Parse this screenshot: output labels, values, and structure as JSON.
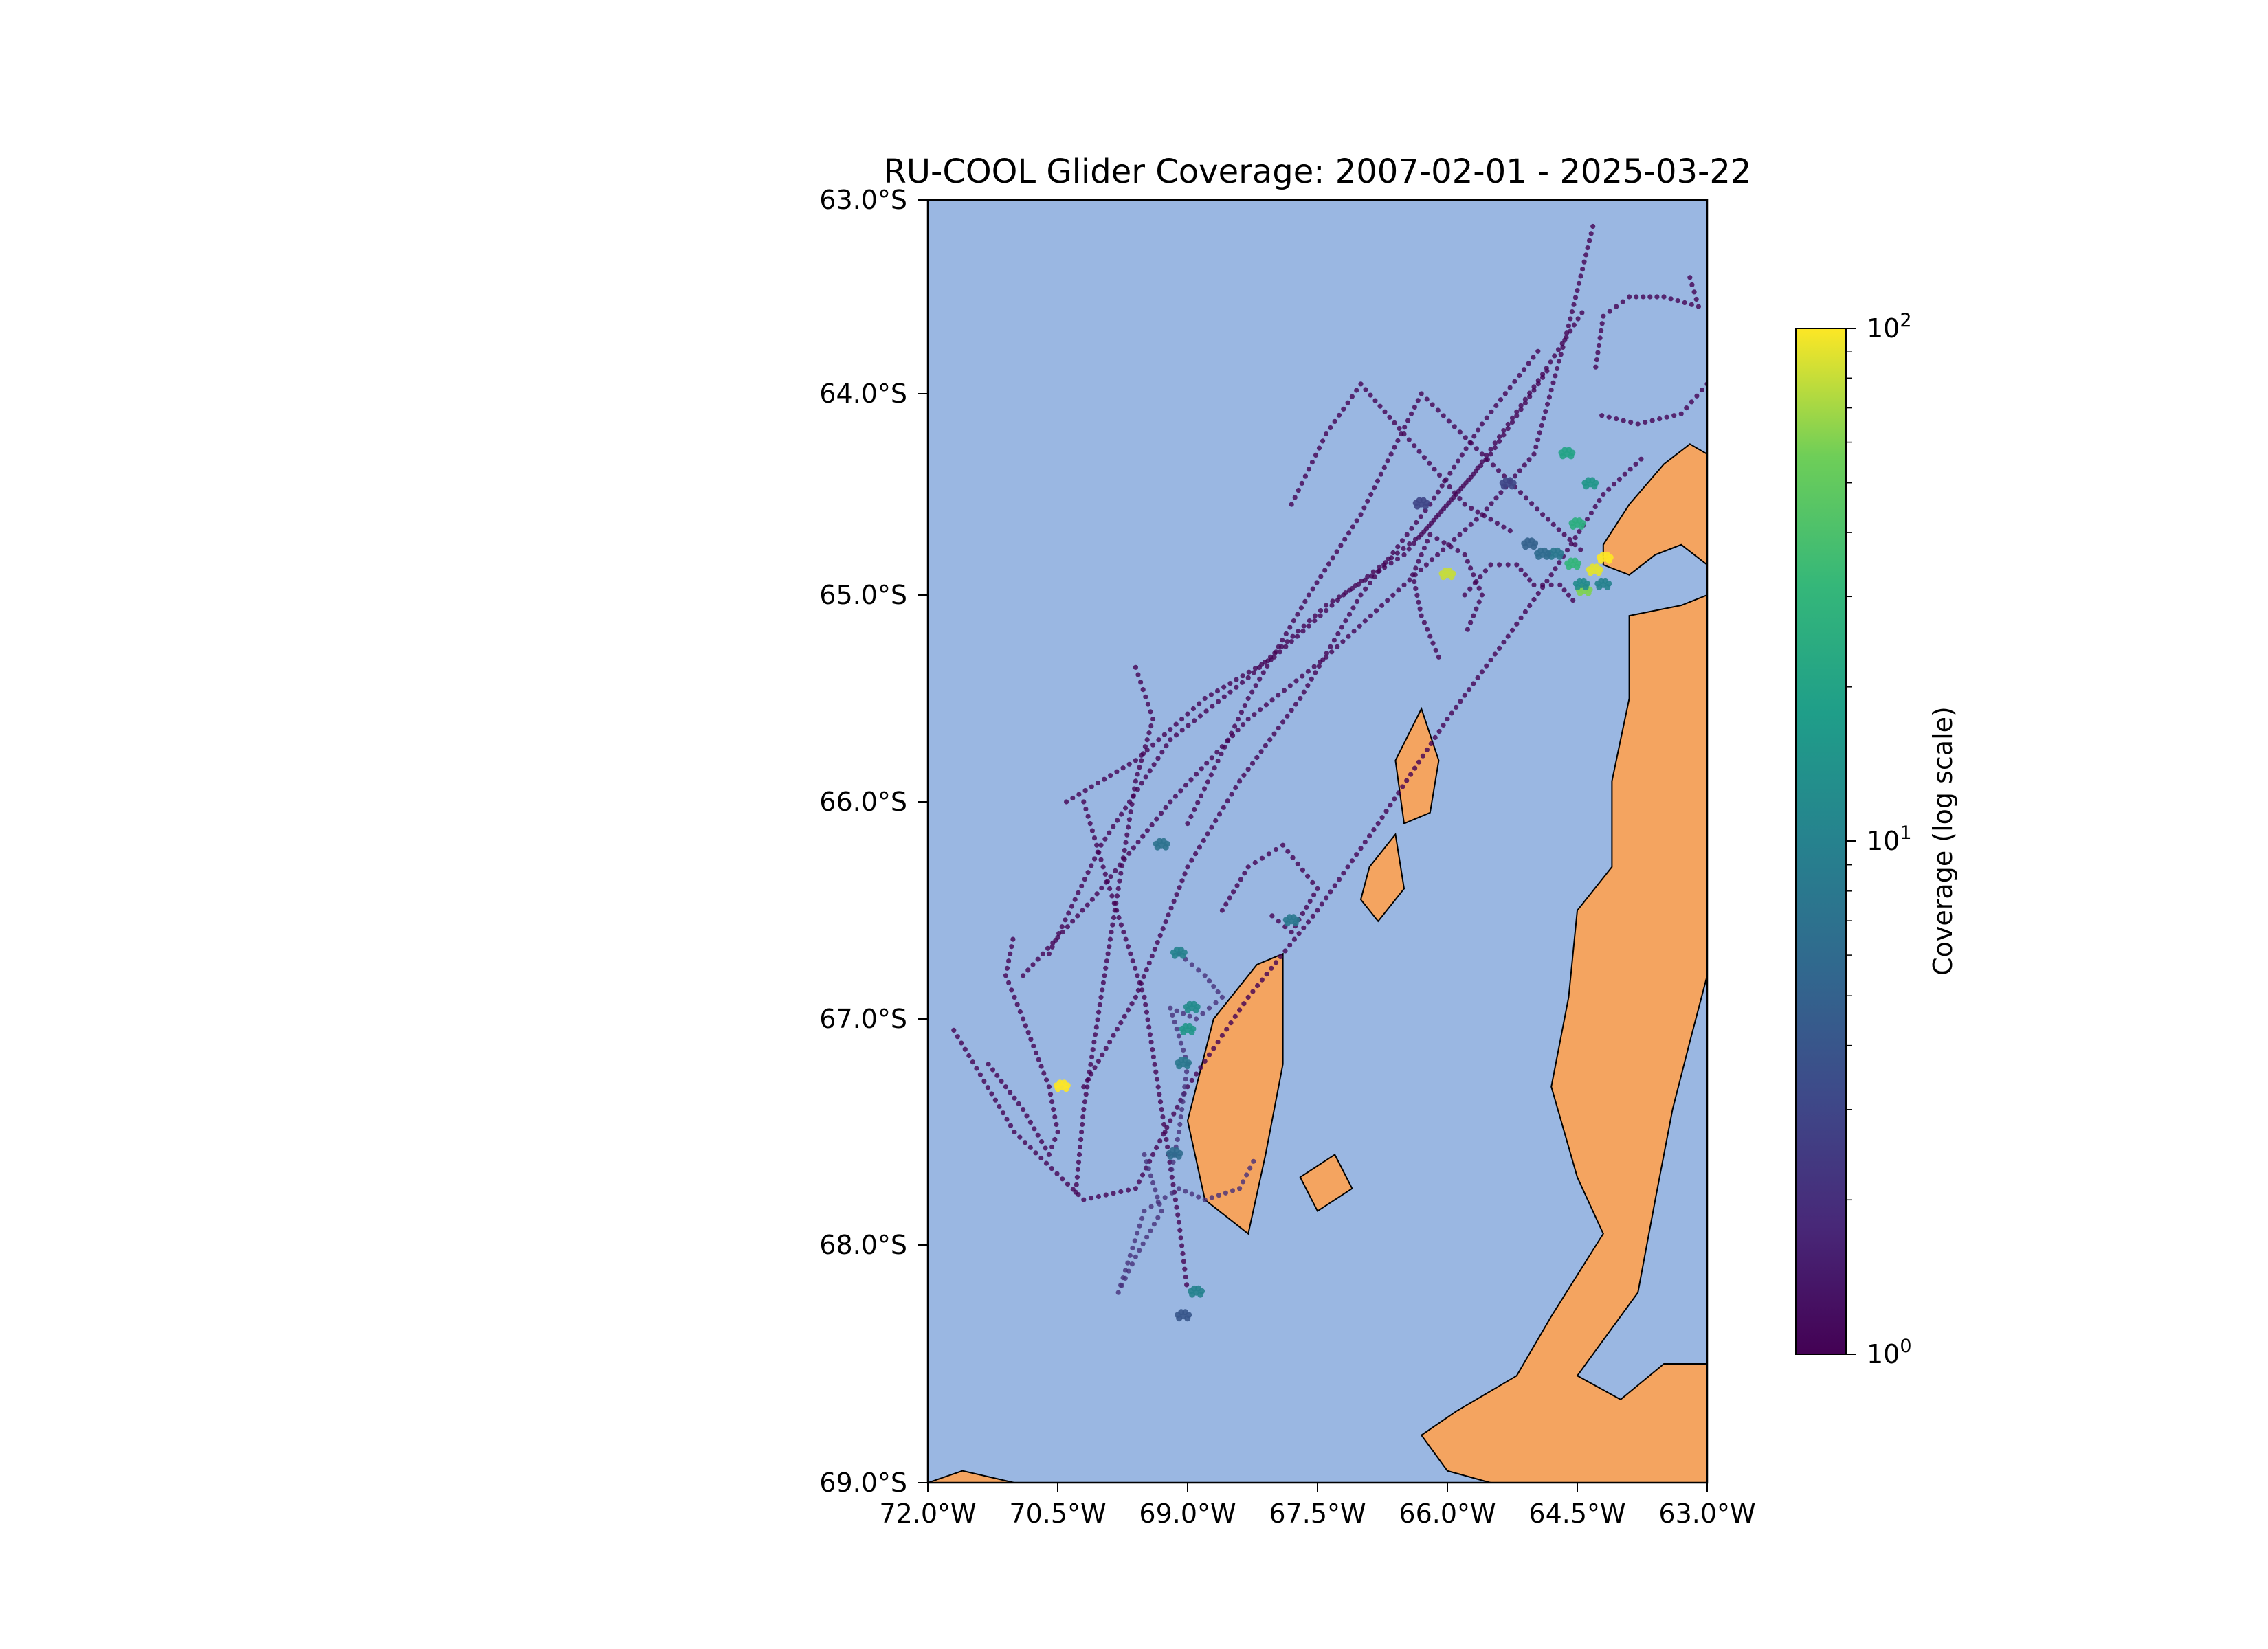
{
  "title": "RU-COOL Glider Coverage: 2007-02-01 - 2025-03-22",
  "colors": {
    "ocean": "#9ab7e2",
    "land": "#f4a460",
    "coastline": "#000000",
    "track_low": "#440154",
    "track_high": "#fde725"
  },
  "map": {
    "lon_range": [
      -72.0,
      -63.0
    ],
    "lat_range": [
      -69.0,
      -63.0
    ],
    "x_ticks": [
      {
        "value": -72.0,
        "label": "72.0°W"
      },
      {
        "value": -70.5,
        "label": "70.5°W"
      },
      {
        "value": -69.0,
        "label": "69.0°W"
      },
      {
        "value": -67.5,
        "label": "67.5°W"
      },
      {
        "value": -66.0,
        "label": "66.0°W"
      },
      {
        "value": -64.5,
        "label": "64.5°W"
      },
      {
        "value": -63.0,
        "label": "63.0°W"
      }
    ],
    "y_ticks": [
      {
        "value": -63.0,
        "label": "63.0°S"
      },
      {
        "value": -64.0,
        "label": "64.0°S"
      },
      {
        "value": -65.0,
        "label": "65.0°S"
      },
      {
        "value": -66.0,
        "label": "66.0°S"
      },
      {
        "value": -67.0,
        "label": "67.0°S"
      },
      {
        "value": -68.0,
        "label": "68.0°S"
      },
      {
        "value": -69.0,
        "label": "69.0°S"
      }
    ]
  },
  "colorbar": {
    "label": "Coverage (log scale)",
    "colormap": "viridis",
    "scale": "log",
    "range": [
      1,
      100
    ],
    "ticks": [
      {
        "base": "10",
        "exp": "0",
        "value": 1
      },
      {
        "base": "10",
        "exp": "1",
        "value": 10
      },
      {
        "base": "10",
        "exp": "2",
        "value": 100
      }
    ]
  },
  "chart_data": {
    "type": "scatter",
    "title": "RU-COOL Glider Coverage: 2007-02-01 - 2025-03-22",
    "xlabel": "",
    "ylabel": "",
    "xlim": [
      -72.0,
      -63.0
    ],
    "ylim": [
      -69.0,
      -63.0
    ],
    "color_scale": "log",
    "tracks": [
      {
        "coverage": 1,
        "points": [
          [
            -71.7,
            -67.05
          ],
          [
            -71.0,
            -67.5
          ],
          [
            -70.2,
            -67.8
          ],
          [
            -69.6,
            -67.75
          ],
          [
            -69.0,
            -67.3
          ],
          [
            -68.3,
            -66.9
          ],
          [
            -67.5,
            -66.5
          ],
          [
            -66.8,
            -66.1
          ],
          [
            -66.0,
            -65.6
          ],
          [
            -65.3,
            -65.2
          ],
          [
            -64.8,
            -64.9
          ],
          [
            -64.2,
            -64.5
          ],
          [
            -63.7,
            -64.3
          ]
        ]
      },
      {
        "coverage": 1,
        "points": [
          [
            -70.4,
            -66.0
          ],
          [
            -69.6,
            -65.8
          ],
          [
            -68.8,
            -65.5
          ],
          [
            -68.0,
            -65.3
          ],
          [
            -67.2,
            -65.0
          ],
          [
            -66.3,
            -64.7
          ],
          [
            -65.5,
            -64.3
          ],
          [
            -64.8,
            -63.85
          ]
        ]
      },
      {
        "coverage": 1,
        "points": [
          [
            -70.6,
            -66.7
          ],
          [
            -70.0,
            -66.2
          ],
          [
            -69.2,
            -65.7
          ],
          [
            -68.3,
            -65.4
          ],
          [
            -67.4,
            -65.05
          ],
          [
            -66.5,
            -64.8
          ],
          [
            -65.7,
            -64.4
          ],
          [
            -64.9,
            -63.9
          ],
          [
            -64.4,
            -63.55
          ]
        ]
      },
      {
        "coverage": 1,
        "points": [
          [
            -70.9,
            -66.8
          ],
          [
            -70.1,
            -66.45
          ],
          [
            -69.2,
            -66.0
          ],
          [
            -68.3,
            -65.6
          ],
          [
            -67.4,
            -65.3
          ],
          [
            -66.5,
            -64.95
          ],
          [
            -65.6,
            -64.6
          ],
          [
            -65.0,
            -64.3
          ],
          [
            -64.6,
            -63.65
          ],
          [
            -64.3,
            -63.1
          ]
        ]
      },
      {
        "coverage": 1,
        "points": [
          [
            -70.2,
            -67.3
          ],
          [
            -69.6,
            -66.9
          ],
          [
            -69.0,
            -66.3
          ],
          [
            -68.4,
            -65.9
          ],
          [
            -67.7,
            -65.5
          ],
          [
            -67.0,
            -65.0
          ],
          [
            -66.2,
            -64.55
          ],
          [
            -65.6,
            -64.15
          ],
          [
            -64.9,
            -63.75
          ]
        ]
      },
      {
        "coverage": 1,
        "points": [
          [
            -69.0,
            -66.1
          ],
          [
            -68.3,
            -65.5
          ],
          [
            -67.6,
            -65.0
          ],
          [
            -67.0,
            -64.6
          ],
          [
            -66.3,
            -64.0
          ],
          [
            -65.6,
            -64.3
          ],
          [
            -64.9,
            -64.6
          ],
          [
            -64.4,
            -64.8
          ]
        ]
      },
      {
        "coverage": 1,
        "points": [
          [
            -67.8,
            -64.55
          ],
          [
            -67.4,
            -64.2
          ],
          [
            -67.0,
            -63.95
          ],
          [
            -66.5,
            -64.2
          ],
          [
            -65.8,
            -64.55
          ],
          [
            -65.2,
            -64.7
          ]
        ]
      },
      {
        "coverage": 1,
        "points": [
          [
            -69.6,
            -65.35
          ],
          [
            -69.4,
            -65.6
          ],
          [
            -69.6,
            -65.9
          ],
          [
            -69.8,
            -66.4
          ],
          [
            -70.0,
            -66.9
          ],
          [
            -70.2,
            -67.4
          ],
          [
            -70.3,
            -67.8
          ]
        ]
      },
      {
        "coverage": 1,
        "points": [
          [
            -70.2,
            -66.0
          ],
          [
            -69.9,
            -66.4
          ],
          [
            -69.5,
            -66.9
          ],
          [
            -69.3,
            -67.4
          ],
          [
            -69.1,
            -67.9
          ],
          [
            -69.0,
            -68.2
          ]
        ]
      },
      {
        "coverage": 2,
        "points": [
          [
            -69.5,
            -67.6
          ],
          [
            -69.3,
            -67.85
          ],
          [
            -69.6,
            -68.05
          ],
          [
            -69.8,
            -68.2
          ],
          [
            -69.5,
            -67.85
          ],
          [
            -69.1,
            -67.75
          ],
          [
            -68.8,
            -67.8
          ],
          [
            -68.4,
            -67.75
          ],
          [
            -68.2,
            -67.6
          ]
        ]
      },
      {
        "coverage": 2,
        "points": [
          [
            -69.1,
            -66.7
          ],
          [
            -68.8,
            -66.8
          ],
          [
            -68.6,
            -66.9
          ],
          [
            -68.9,
            -67.0
          ],
          [
            -69.2,
            -66.95
          ],
          [
            -69.0,
            -67.2
          ],
          [
            -69.1,
            -67.5
          ],
          [
            -69.2,
            -67.7
          ]
        ]
      },
      {
        "coverage": 1,
        "points": [
          [
            -68.6,
            -66.5
          ],
          [
            -68.3,
            -66.3
          ],
          [
            -67.9,
            -66.2
          ],
          [
            -67.5,
            -66.4
          ],
          [
            -67.8,
            -66.6
          ],
          [
            -68.1,
            -66.5
          ]
        ]
      },
      {
        "coverage": 1,
        "points": [
          [
            -71.3,
            -67.2
          ],
          [
            -70.9,
            -67.4
          ],
          [
            -70.6,
            -67.6
          ],
          [
            -70.5,
            -67.5
          ],
          [
            -70.6,
            -67.3
          ],
          [
            -70.9,
            -67.0
          ],
          [
            -71.1,
            -66.8
          ],
          [
            -71.0,
            -66.6
          ]
        ]
      },
      {
        "coverage": 1,
        "points": [
          [
            -65.8,
            -65.0
          ],
          [
            -65.5,
            -64.85
          ],
          [
            -65.2,
            -64.85
          ],
          [
            -65.0,
            -64.95
          ],
          [
            -64.7,
            -64.95
          ],
          [
            -64.5,
            -65.05
          ]
        ]
      },
      {
        "coverage": 1,
        "points": [
          [
            -63.2,
            -63.4
          ],
          [
            -63.1,
            -63.55
          ],
          [
            -63.5,
            -63.5
          ],
          [
            -63.9,
            -63.5
          ],
          [
            -64.2,
            -63.6
          ],
          [
            -64.3,
            -63.9
          ]
        ]
      },
      {
        "coverage": 1,
        "points": [
          [
            -63.0,
            -63.95
          ],
          [
            -63.3,
            -64.1
          ],
          [
            -63.8,
            -64.15
          ],
          [
            -64.3,
            -64.1
          ]
        ]
      },
      {
        "coverage": 1,
        "points": [
          [
            -66.1,
            -65.3
          ],
          [
            -66.3,
            -65.1
          ],
          [
            -66.4,
            -64.9
          ],
          [
            -66.2,
            -64.7
          ],
          [
            -65.8,
            -64.8
          ],
          [
            -65.6,
            -65.0
          ],
          [
            -65.8,
            -65.2
          ]
        ]
      }
    ],
    "hotspots": [
      {
        "lon": -64.3,
        "lat": -64.88,
        "coverage": 90
      },
      {
        "lon": -64.18,
        "lat": -64.82,
        "coverage": 100
      },
      {
        "lon": -64.42,
        "lat": -64.98,
        "coverage": 60
      },
      {
        "lon": -64.55,
        "lat": -64.85,
        "coverage": 30
      },
      {
        "lon": -64.5,
        "lat": -64.65,
        "coverage": 25
      },
      {
        "lon": -64.62,
        "lat": -64.3,
        "coverage": 20
      },
      {
        "lon": -64.35,
        "lat": -64.45,
        "coverage": 15
      },
      {
        "lon": -64.75,
        "lat": -64.8,
        "coverage": 8
      },
      {
        "lon": -64.9,
        "lat": -64.8,
        "coverage": 6
      },
      {
        "lon": -65.05,
        "lat": -64.75,
        "coverage": 5
      },
      {
        "lon": -64.45,
        "lat": -64.95,
        "coverage": 12
      },
      {
        "lon": -64.2,
        "lat": -64.95,
        "coverage": 10
      },
      {
        "lon": -70.45,
        "lat": -67.3,
        "coverage": 100
      },
      {
        "lon": -66.0,
        "lat": -64.9,
        "coverage": 80
      },
      {
        "lon": -69.1,
        "lat": -66.7,
        "coverage": 10
      },
      {
        "lon": -68.95,
        "lat": -66.95,
        "coverage": 12
      },
      {
        "lon": -69.0,
        "lat": -67.05,
        "coverage": 15
      },
      {
        "lon": -69.05,
        "lat": -67.2,
        "coverage": 8
      },
      {
        "lon": -69.15,
        "lat": -67.6,
        "coverage": 6
      },
      {
        "lon": -68.9,
        "lat": -68.2,
        "coverage": 10
      },
      {
        "lon": -69.3,
        "lat": -66.2,
        "coverage": 7
      },
      {
        "lon": -67.8,
        "lat": -66.55,
        "coverage": 8
      },
      {
        "lon": -69.05,
        "lat": -68.3,
        "coverage": 4
      },
      {
        "lon": -66.3,
        "lat": -64.55,
        "coverage": 3
      },
      {
        "lon": -65.3,
        "lat": -64.45,
        "coverage": 3
      }
    ],
    "land": [
      [
        [
          -64.2,
          -64.75
        ],
        [
          -63.9,
          -64.55
        ],
        [
          -63.5,
          -64.35
        ],
        [
          -63.2,
          -64.25
        ],
        [
          -63.0,
          -64.3
        ],
        [
          -63.0,
          -64.85
        ],
        [
          -63.3,
          -64.75
        ],
        [
          -63.6,
          -64.8
        ],
        [
          -63.9,
          -64.9
        ],
        [
          -64.2,
          -64.85
        ]
      ],
      [
        [
          -63.0,
          -65.0
        ],
        [
          -63.3,
          -65.05
        ],
        [
          -63.9,
          -65.1
        ],
        [
          -63.9,
          -65.5
        ],
        [
          -64.1,
          -65.9
        ],
        [
          -64.1,
          -66.3
        ],
        [
          -64.5,
          -66.5
        ],
        [
          -64.6,
          -66.9
        ],
        [
          -64.8,
          -67.3
        ],
        [
          -64.5,
          -67.7
        ],
        [
          -64.2,
          -67.95
        ],
        [
          -64.8,
          -68.3
        ],
        [
          -65.2,
          -68.55
        ],
        [
          -65.9,
          -68.7
        ],
        [
          -66.3,
          -68.8
        ],
        [
          -66.0,
          -68.95
        ],
        [
          -65.5,
          -69.0
        ],
        [
          -63.0,
          -69.0
        ],
        [
          -63.0,
          -68.5
        ],
        [
          -63.5,
          -68.5
        ],
        [
          -64.0,
          -68.65
        ],
        [
          -64.5,
          -68.55
        ],
        [
          -63.8,
          -68.2
        ],
        [
          -63.6,
          -67.8
        ],
        [
          -63.4,
          -67.4
        ],
        [
          -63.2,
          -67.1
        ],
        [
          -63.0,
          -66.8
        ]
      ],
      [
        [
          -66.6,
          -65.8
        ],
        [
          -66.3,
          -65.55
        ],
        [
          -66.1,
          -65.8
        ],
        [
          -66.2,
          -66.05
        ],
        [
          -66.5,
          -66.1
        ]
      ],
      [
        [
          -66.9,
          -66.3
        ],
        [
          -66.6,
          -66.15
        ],
        [
          -66.5,
          -66.4
        ],
        [
          -66.8,
          -66.55
        ],
        [
          -67.0,
          -66.45
        ]
      ],
      [
        [
          -68.3,
          -67.95
        ],
        [
          -68.8,
          -67.8
        ],
        [
          -69.0,
          -67.45
        ],
        [
          -68.7,
          -67.0
        ],
        [
          -68.2,
          -66.75
        ],
        [
          -67.9,
          -66.7
        ],
        [
          -67.9,
          -67.2
        ],
        [
          -68.1,
          -67.6
        ]
      ],
      [
        [
          -67.5,
          -67.85
        ],
        [
          -67.7,
          -67.7
        ],
        [
          -67.3,
          -67.6
        ],
        [
          -67.1,
          -67.75
        ]
      ],
      [
        [
          -71.0,
          -69.0
        ],
        [
          -71.6,
          -68.95
        ],
        [
          -72.0,
          -69.0
        ]
      ]
    ]
  }
}
